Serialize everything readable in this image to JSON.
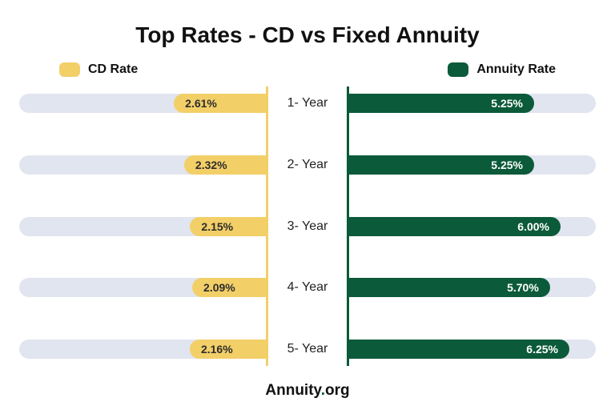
{
  "title": "Top Rates - CD vs Fixed Annuity",
  "legend": {
    "left": {
      "label": "CD Rate",
      "color": "#f3cf68"
    },
    "right": {
      "label": "Annuity Rate",
      "color": "#0b5a3a"
    }
  },
  "chart": {
    "track_color": "#e1e5ef",
    "axis_color_left": "#f3cf68",
    "axis_color_right": "#0b5a3a",
    "left_text_color": "#2d2d2d",
    "right_text_color": "#ffffff",
    "max_value": 7.0,
    "rows": [
      {
        "label": "1- Year",
        "left_value": 2.61,
        "left_display": "2.61%",
        "right_value": 5.25,
        "right_display": "5.25%"
      },
      {
        "label": "2- Year",
        "left_value": 2.32,
        "left_display": "2.32%",
        "right_value": 5.25,
        "right_display": "5.25%"
      },
      {
        "label": "3- Year",
        "left_value": 2.15,
        "left_display": "2.15%",
        "right_value": 6.0,
        "right_display": "6.00%"
      },
      {
        "label": "4- Year",
        "left_value": 2.09,
        "left_display": "2.09%",
        "right_value": 5.7,
        "right_display": "5.70%"
      },
      {
        "label": "5- Year",
        "left_value": 2.16,
        "left_display": "2.16%",
        "right_value": 6.25,
        "right_display": "6.25%"
      }
    ]
  },
  "footer": {
    "brand": "Annuity",
    "dot": ".",
    "tld": "org"
  }
}
